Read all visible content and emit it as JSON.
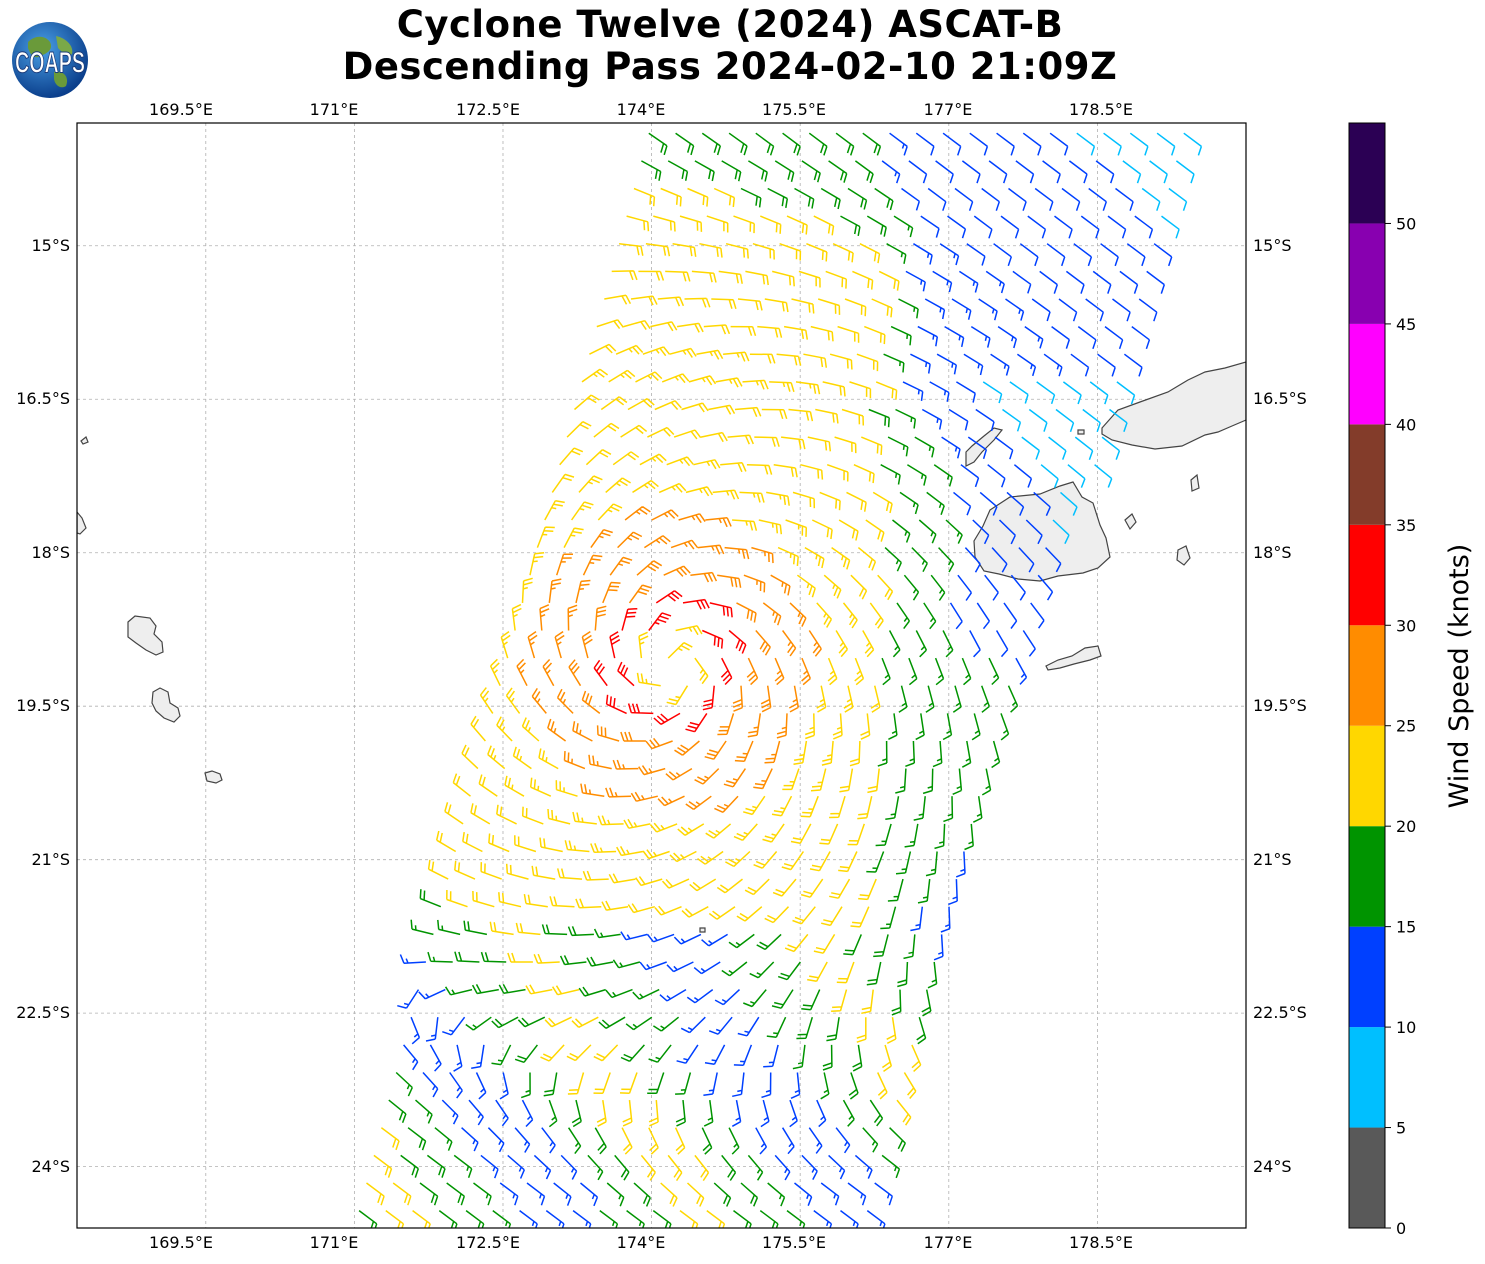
{
  "title": {
    "line1": "Cyclone Twelve (2024) ASCAT-B",
    "line2": "Descending Pass 2024-02-10 21:09Z"
  },
  "logo": {
    "text": "COAPS",
    "icon": "earth-globe-icon"
  },
  "map": {
    "lon_range": [
      168.2,
      180.0
    ],
    "lat_range": [
      -24.6,
      -13.8
    ],
    "lon_ticks": [
      "169.5°E",
      "171°E",
      "172.5°E",
      "174°E",
      "175.5°E",
      "177°E",
      "178.5°E"
    ],
    "lon_tick_values": [
      169.5,
      171.0,
      172.5,
      174.0,
      175.5,
      177.0,
      178.5
    ],
    "lat_ticks": [
      "15°S",
      "16.5°S",
      "18°S",
      "19.5°S",
      "21°S",
      "22.5°S",
      "24°S"
    ],
    "lat_tick_values": [
      -15.0,
      -16.5,
      -18.0,
      -19.5,
      -21.0,
      -22.5,
      -24.0
    ],
    "gridlines": true,
    "land_color": "#eeeeee",
    "coast_color": "#444444"
  },
  "chart_data": {
    "type": "wind-barbs",
    "storm_center": {
      "lon": 174.2,
      "lat": -19.1
    },
    "swath": {
      "left_edge": [
        [
          174.0,
          -13.8
        ],
        [
          171.0,
          -24.6
        ]
      ],
      "right_edge": [
        [
          179.5,
          -13.8
        ],
        [
          176.2,
          -24.6
        ]
      ]
    },
    "colorbar": {
      "label": "Wind Speed (knots)",
      "ticks": [
        "0",
        "5",
        "10",
        "15",
        "20",
        "25",
        "30",
        "35",
        "40",
        "45",
        "50"
      ],
      "bins": [
        {
          "min": 0,
          "max": 5,
          "color": "#595959"
        },
        {
          "min": 5,
          "max": 10,
          "color": "#00bfff"
        },
        {
          "min": 10,
          "max": 15,
          "color": "#0040ff"
        },
        {
          "min": 15,
          "max": 20,
          "color": "#009400"
        },
        {
          "min": 20,
          "max": 25,
          "color": "#ffd700"
        },
        {
          "min": 25,
          "max": 30,
          "color": "#ff8c00"
        },
        {
          "min": 30,
          "max": 35,
          "color": "#ff0000"
        },
        {
          "min": 35,
          "max": 40,
          "color": "#833c2a"
        },
        {
          "min": 40,
          "max": 45,
          "color": "#ff00ff"
        },
        {
          "min": 45,
          "max": 50,
          "color": "#8800b0"
        },
        {
          "min": 50,
          "max": 55,
          "color": "#2b0054"
        }
      ]
    }
  }
}
